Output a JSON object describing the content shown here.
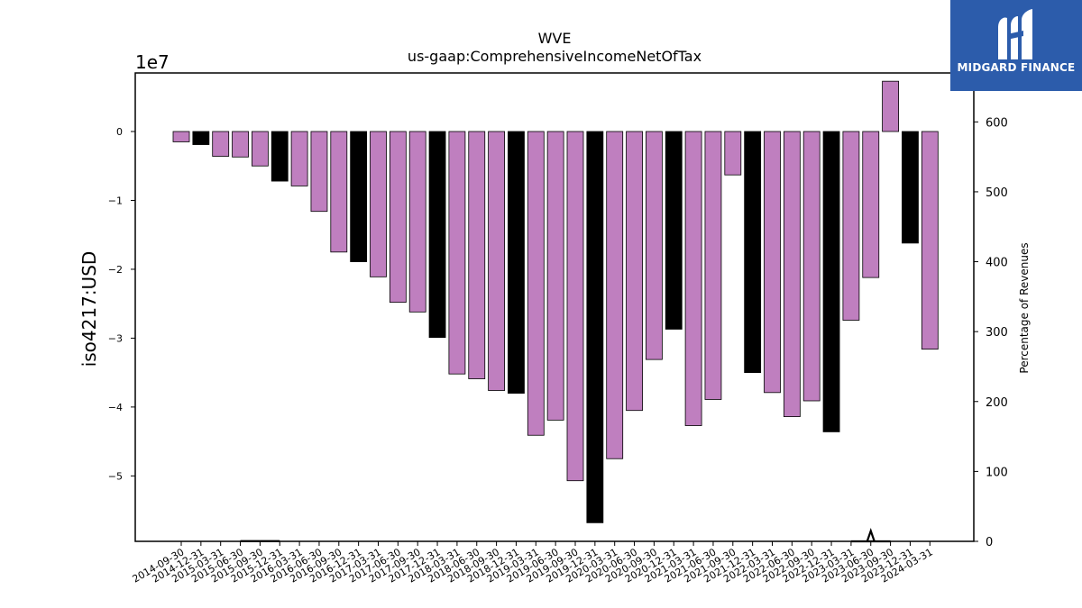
{
  "brand": {
    "name": "MIDGARD FINANCE",
    "color": "#2c5cab"
  },
  "chart_data": {
    "type": "bar",
    "title": "WVE",
    "subtitle": "us-gaap:ComprehensiveIncomeNetOfTax",
    "ylabel": "iso4217:USD",
    "y_offset_label": "1e7",
    "y2label": "Percentage of Revenues",
    "ylim": [
      -5.95,
      0.85
    ],
    "y_ticks": [
      0,
      -1,
      -2,
      -3,
      -4,
      -5
    ],
    "y_tick_labels": [
      "0",
      "−1",
      "−2",
      "−3",
      "−4",
      "−5"
    ],
    "y2lim": [
      0,
      670
    ],
    "y2_ticks": [
      0,
      100,
      200,
      300,
      400,
      500,
      600
    ],
    "y2_tick_labels": [
      "0",
      "100",
      "200",
      "300",
      "400",
      "500",
      "600"
    ],
    "categories": [
      "2014-09-30",
      "2014-12-31",
      "2015-03-31",
      "2015-06-30",
      "2015-09-30",
      "2015-12-31",
      "2016-03-31",
      "2016-06-30",
      "2016-09-30",
      "2016-12-31",
      "2017-03-31",
      "2017-06-30",
      "2017-09-30",
      "2017-12-31",
      "2018-03-31",
      "2018-06-30",
      "2018-09-30",
      "2018-12-31",
      "2019-03-31",
      "2019-06-30",
      "2019-09-30",
      "2019-12-31",
      "2020-03-31",
      "2020-06-30",
      "2020-09-30",
      "2020-12-31",
      "2021-03-31",
      "2021-06-30",
      "2021-09-30",
      "2021-12-31",
      "2022-03-31",
      "2022-06-30",
      "2022-09-30",
      "2022-12-31",
      "2023-03-31",
      "2023-06-30",
      "2023-09-30",
      "2023-12-31",
      "2024-03-31"
    ],
    "values": [
      -0.15,
      -0.19,
      -0.36,
      -0.37,
      -0.5,
      -0.72,
      -0.79,
      -1.16,
      -1.75,
      -1.89,
      -2.11,
      -2.48,
      -2.62,
      -2.99,
      -3.52,
      -3.59,
      -3.76,
      -3.8,
      -4.41,
      -4.19,
      -5.07,
      -5.68,
      -4.75,
      -4.05,
      -3.31,
      -2.87,
      -4.27,
      -3.89,
      -0.63,
      -3.5,
      -3.79,
      -4.14,
      -3.91,
      -4.36,
      -2.74,
      -2.12,
      0.73,
      -1.62,
      -3.16
    ],
    "bar_colors": [
      "#bf7fbf",
      "#000000",
      "#bf7fbf",
      "#bf7fbf",
      "#bf7fbf",
      "#000000",
      "#bf7fbf",
      "#bf7fbf",
      "#bf7fbf",
      "#000000",
      "#bf7fbf",
      "#bf7fbf",
      "#bf7fbf",
      "#000000",
      "#bf7fbf",
      "#bf7fbf",
      "#bf7fbf",
      "#000000",
      "#bf7fbf",
      "#bf7fbf",
      "#bf7fbf",
      "#000000",
      "#bf7fbf",
      "#bf7fbf",
      "#bf7fbf",
      "#000000",
      "#bf7fbf",
      "#bf7fbf",
      "#bf7fbf",
      "#000000",
      "#bf7fbf",
      "#bf7fbf",
      "#bf7fbf",
      "#000000",
      "#bf7fbf",
      "#bf7fbf",
      "#bf7fbf",
      "#000000",
      "#bf7fbf"
    ],
    "colors": {
      "quarter": "#bf7fbf",
      "fiscal_year_end": "#000000"
    },
    "percentage_of_revenues": [
      {
        "category": "2014-12-31",
        "value": 0.3
      },
      {
        "category": "2015-06-30",
        "value": 0.3
      },
      {
        "category": "2015-09-30",
        "value": 0.3
      },
      {
        "category": "2015-12-31",
        "value": 0.3
      },
      {
        "category": "2023-03-31",
        "value": 0
      },
      {
        "category": "2023-06-30",
        "value": 0
      },
      {
        "category": "2023-09-30",
        "value": 0
      }
    ],
    "spike_category": "2023-06-30",
    "spike_value": 15,
    "grid": false,
    "legend": "none"
  }
}
